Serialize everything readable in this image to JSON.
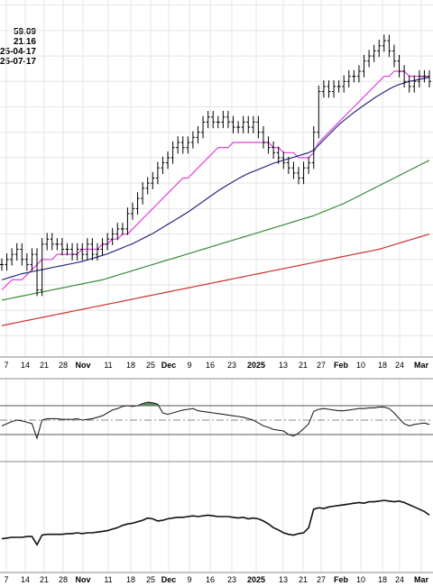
{
  "header": {
    "stats": [
      "59.09",
      "21.16",
      "25-04-17",
      "25-07-17"
    ]
  },
  "chart_data": [
    {
      "type": "line",
      "panel": "price",
      "x_labels": [
        "7",
        "14",
        "21",
        "28",
        "Nov",
        "11",
        "18",
        "25",
        "Dec",
        "9",
        "16",
        "23",
        "2025",
        "13",
        "21",
        "27",
        "Feb",
        "10",
        "18",
        "24",
        "Mar"
      ],
      "bold_labels": [
        "Nov",
        "Dec",
        "2025",
        "Feb",
        "Mar"
      ],
      "ohlc_closes": [
        84,
        85,
        86,
        87,
        85,
        84,
        86,
        79,
        88,
        89,
        88,
        88,
        87,
        87,
        86,
        87,
        86,
        88,
        86,
        87,
        88,
        89,
        90,
        91,
        91,
        94,
        95,
        97,
        99,
        100,
        101,
        103,
        104,
        105,
        107,
        108,
        107,
        108,
        109,
        110,
        112,
        113,
        112,
        112,
        113,
        112,
        111,
        111,
        112,
        111,
        112,
        110,
        108,
        107,
        106,
        105,
        104,
        103,
        102,
        101,
        103,
        104,
        110,
        118,
        119,
        118,
        119,
        119,
        120,
        121,
        121,
        122,
        124,
        125,
        126,
        127,
        128,
        126,
        124,
        122,
        120,
        119,
        120,
        121,
        121,
        120
      ],
      "series": [
        {
          "color": "#e040e0",
          "values": [
            79,
            80,
            81,
            81,
            81,
            82,
            83,
            84,
            85,
            85,
            85,
            86,
            86,
            86,
            86,
            86,
            87,
            87,
            87,
            87,
            88,
            88,
            89,
            89,
            90,
            90,
            91,
            92,
            93,
            94,
            95,
            96,
            97,
            98,
            99,
            100,
            101,
            101,
            102,
            103,
            104,
            105,
            106,
            107,
            107,
            107,
            108,
            108,
            108,
            108,
            108,
            108,
            108,
            108,
            107,
            107,
            106,
            106,
            106,
            105,
            105,
            105,
            106,
            108,
            109,
            110,
            111,
            112,
            113,
            114,
            115,
            116,
            117,
            118,
            119,
            120,
            121,
            121,
            122,
            122,
            122,
            121,
            121,
            121,
            121,
            121
          ]
        },
        {
          "color": "#2a2a80",
          "values": [
            81,
            81.3,
            81.6,
            81.9,
            82.2,
            82.4,
            82.6,
            82.8,
            83,
            83.2,
            83.4,
            83.6,
            83.8,
            84,
            84.2,
            84.4,
            84.6,
            84.9,
            85.2,
            85.5,
            85.8,
            86.1,
            86.5,
            86.9,
            87.3,
            87.7,
            88.1,
            88.6,
            89.1,
            89.6,
            90.1,
            90.7,
            91.3,
            91.9,
            92.5,
            93.1,
            93.7,
            94.3,
            95,
            95.7,
            96.4,
            97.1,
            97.8,
            98.5,
            99.1,
            99.7,
            100.3,
            100.9,
            101.4,
            101.9,
            102.3,
            102.7,
            103.1,
            103.5,
            103.9,
            104.2,
            104.5,
            104.8,
            105.1,
            105.4,
            105.7,
            106,
            106.5,
            107.5,
            108.5,
            109.5,
            110.5,
            111.5,
            112.3,
            113.1,
            113.9,
            114.6,
            115.3,
            116,
            116.7,
            117.3,
            117.9,
            118.5,
            119,
            119.4,
            119.7,
            120,
            120.2,
            120.4,
            120.6,
            120.8
          ]
        },
        {
          "color": "#3a8a3a",
          "values": [
            77,
            77.2,
            77.4,
            77.6,
            77.8,
            78,
            78.2,
            78.4,
            78.6,
            78.8,
            79,
            79.2,
            79.4,
            79.6,
            79.8,
            80,
            80.2,
            80.4,
            80.6,
            80.8,
            81,
            81.3,
            81.6,
            81.9,
            82.2,
            82.5,
            82.8,
            83.1,
            83.4,
            83.7,
            84,
            84.3,
            84.6,
            84.9,
            85.2,
            85.5,
            85.8,
            86.1,
            86.4,
            86.7,
            87,
            87.3,
            87.6,
            87.9,
            88.2,
            88.5,
            88.8,
            89.1,
            89.4,
            89.7,
            90,
            90.3,
            90.6,
            90.9,
            91.2,
            91.5,
            91.8,
            92.1,
            92.4,
            92.7,
            93,
            93.3,
            93.6,
            94,
            94.4,
            94.8,
            95.2,
            95.6,
            96,
            96.5,
            97,
            97.5,
            98,
            98.5,
            99,
            99.5,
            100,
            100.5,
            101,
            101.5,
            102,
            102.5,
            103,
            103.5,
            104,
            104.5
          ]
        },
        {
          "color": "#d03030",
          "values": [
            72,
            72.2,
            72.4,
            72.6,
            72.8,
            73,
            73.2,
            73.4,
            73.6,
            73.8,
            74,
            74.2,
            74.4,
            74.6,
            74.8,
            75,
            75.2,
            75.4,
            75.6,
            75.8,
            76,
            76.2,
            76.4,
            76.6,
            76.8,
            77,
            77.2,
            77.4,
            77.6,
            77.8,
            78,
            78.2,
            78.4,
            78.6,
            78.8,
            79,
            79.2,
            79.4,
            79.6,
            79.8,
            80,
            80.2,
            80.4,
            80.6,
            80.8,
            81,
            81.2,
            81.4,
            81.6,
            81.8,
            82,
            82.2,
            82.4,
            82.6,
            82.8,
            83,
            83.2,
            83.4,
            83.6,
            83.8,
            84,
            84.2,
            84.4,
            84.6,
            84.8,
            85,
            85.2,
            85.4,
            85.6,
            85.8,
            86,
            86.2,
            86.4,
            86.6,
            86.8,
            87,
            87.3,
            87.6,
            87.9,
            88.2,
            88.5,
            88.8,
            89.1,
            89.4,
            89.7,
            90
          ]
        }
      ],
      "ylim": [
        66,
        136
      ],
      "grid": true
    },
    {
      "type": "area",
      "panel": "oscillator",
      "values": [
        42,
        45,
        48,
        50,
        49,
        47,
        45,
        25,
        50,
        52,
        52,
        52,
        51,
        51,
        51,
        52,
        50,
        51,
        52,
        54,
        56,
        60,
        64,
        66,
        69,
        70,
        69,
        70,
        73,
        75,
        74,
        72,
        60,
        58,
        60,
        62,
        64,
        65,
        66,
        63,
        62,
        61,
        60,
        59,
        58,
        57,
        56,
        55,
        54,
        52,
        50,
        46,
        42,
        40,
        37,
        36,
        35,
        30,
        28,
        32,
        38,
        45,
        62,
        65,
        66,
        65,
        64,
        63,
        63,
        64,
        65,
        66,
        66,
        67,
        67,
        68,
        68,
        66,
        60,
        52,
        45,
        42,
        44,
        45,
        46,
        44
      ],
      "levels": [
        70,
        30
      ],
      "midline": 50,
      "ylim": [
        0,
        100
      ],
      "fill_color": "#5a8a5a"
    },
    {
      "type": "line",
      "panel": "indicator",
      "values": [
        20,
        21,
        22,
        22,
        22,
        23,
        23,
        12,
        25,
        26,
        26,
        26,
        26,
        27,
        27,
        28,
        27,
        28,
        28,
        29,
        30,
        31,
        33,
        35,
        38,
        40,
        41,
        43,
        45,
        48,
        47,
        44,
        45,
        47,
        48,
        49,
        49,
        50,
        51,
        50,
        51,
        52,
        51,
        50,
        50,
        50,
        49,
        48,
        49,
        47,
        48,
        47,
        44,
        40,
        35,
        32,
        28,
        26,
        25,
        27,
        28,
        35,
        60,
        62,
        61,
        63,
        64,
        65,
        66,
        67,
        68,
        69,
        68,
        70,
        70,
        71,
        72,
        71,
        70,
        71,
        69,
        66,
        63,
        60,
        57,
        52
      ],
      "ylim": [
        0,
        100
      ]
    }
  ]
}
